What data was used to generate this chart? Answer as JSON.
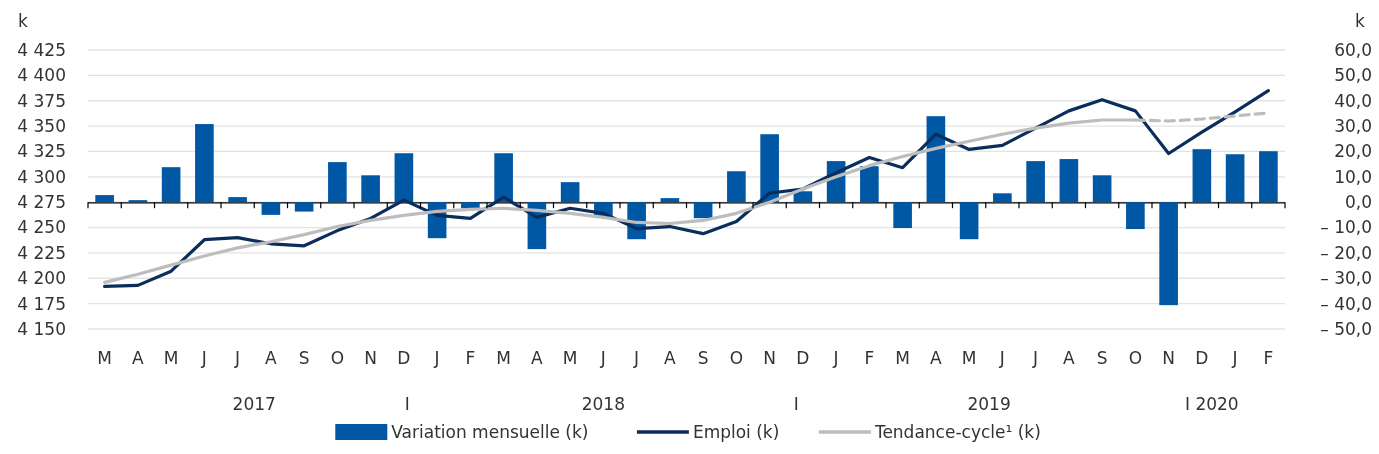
{
  "chart_data": {
    "type": "bar",
    "categories": [
      "M",
      "A",
      "M",
      "J",
      "J",
      "A",
      "S",
      "O",
      "N",
      "D",
      "J",
      "F",
      "M",
      "A",
      "M",
      "J",
      "J",
      "A",
      "S",
      "O",
      "N",
      "D",
      "J",
      "F",
      "M",
      "A",
      "M",
      "J",
      "J",
      "A",
      "S",
      "O",
      "N",
      "D",
      "J",
      "F"
    ],
    "series": [
      {
        "name": "Variation mensuelle (k)",
        "axis": "y2",
        "color": "#0057a4",
        "values": [
          2.8,
          0.8,
          13.8,
          30.8,
          2,
          -5,
          -3.7,
          15.8,
          10.6,
          19.3,
          -14.2,
          -2.4,
          19.3,
          -18.5,
          7.9,
          -5.9,
          -14.6,
          1.6,
          -6.3,
          12.2,
          26.8,
          4.3,
          16.2,
          14.2,
          -10.2,
          33.9,
          -14.6,
          3.5,
          16.2,
          17,
          10.6,
          -10.6,
          -40.6,
          20.9,
          18.9,
          20.1
        ]
      },
      {
        "name": "Emploi (k)",
        "type": "line",
        "color": "#0b2d5c",
        "values": [
          4192,
          4193,
          4207,
          4238,
          4240,
          4234,
          4232,
          4247,
          4259,
          4277,
          4262,
          4259,
          4280,
          4260,
          4269,
          4264,
          4249,
          4251,
          4244,
          4256,
          4284,
          4288,
          4304,
          4319,
          4309,
          4342,
          4327,
          4331,
          4348,
          4365,
          4376,
          4365,
          4323,
          4344,
          4364,
          4385
        ]
      },
      {
        "name": "Tendance-cycle¹ (k)",
        "type": "line",
        "color": "#bdbdbd",
        "line_style": "solid",
        "values": [
          4196,
          4204,
          4213,
          4222,
          4230,
          4236,
          4243,
          4251,
          4257,
          4262,
          4266,
          4268,
          4269,
          4267,
          4264,
          4260,
          4255,
          4254,
          4257,
          4264,
          4275,
          4288,
          4300,
          4311,
          4320,
          4328,
          4335,
          4342,
          4348,
          4353,
          4356,
          4356,
          null,
          null,
          null,
          null
        ]
      },
      {
        "type": "line",
        "color": "#bdbdbd",
        "line_style": "dashed",
        "values": [
          null,
          null,
          null,
          null,
          null,
          null,
          null,
          null,
          null,
          null,
          null,
          null,
          null,
          null,
          null,
          null,
          null,
          null,
          null,
          null,
          null,
          null,
          null,
          null,
          null,
          null,
          null,
          null,
          null,
          null,
          null,
          4356,
          4355,
          4357,
          4360,
          4363
        ]
      }
    ],
    "ylabel": "k",
    "y2label": "k",
    "ylim": [
      4150,
      4425
    ],
    "yticks": [
      {
        "value": 4150,
        "label": "4 150"
      },
      {
        "value": 4175,
        "label": "4 175"
      },
      {
        "value": 4200,
        "label": "4 200"
      },
      {
        "value": 4225,
        "label": "4 225"
      },
      {
        "value": 4250,
        "label": "4 250"
      },
      {
        "value": 4275,
        "label": "4 275"
      },
      {
        "value": 4300,
        "label": "4 300"
      },
      {
        "value": 4325,
        "label": "4 325"
      },
      {
        "value": 4350,
        "label": "4 350"
      },
      {
        "value": 4375,
        "label": "4 375"
      },
      {
        "value": 4400,
        "label": "4 400"
      },
      {
        "value": 4425,
        "label": "4 425"
      }
    ],
    "y2lim": [
      -50,
      60
    ],
    "y2ticks": [
      {
        "value": -50,
        "label": "– 50,0"
      },
      {
        "value": -40,
        "label": "– 40,0"
      },
      {
        "value": -30,
        "label": "– 30,0"
      },
      {
        "value": -20,
        "label": "– 20,0"
      },
      {
        "value": -10,
        "label": "– 10,0"
      },
      {
        "value": 0,
        "label": "0,0"
      },
      {
        "value": 10,
        "label": "10,0"
      },
      {
        "value": 20,
        "label": "20,0"
      },
      {
        "value": 30,
        "label": "30,0"
      },
      {
        "value": 40,
        "label": "40,0"
      },
      {
        "value": 50,
        "label": "50,0"
      },
      {
        "value": 60,
        "label": "60,0"
      }
    ],
    "annotations": [
      "2017",
      "I",
      "2018",
      "I",
      "2019",
      "I 2020"
    ],
    "grid": "y",
    "legend": "bottom"
  }
}
